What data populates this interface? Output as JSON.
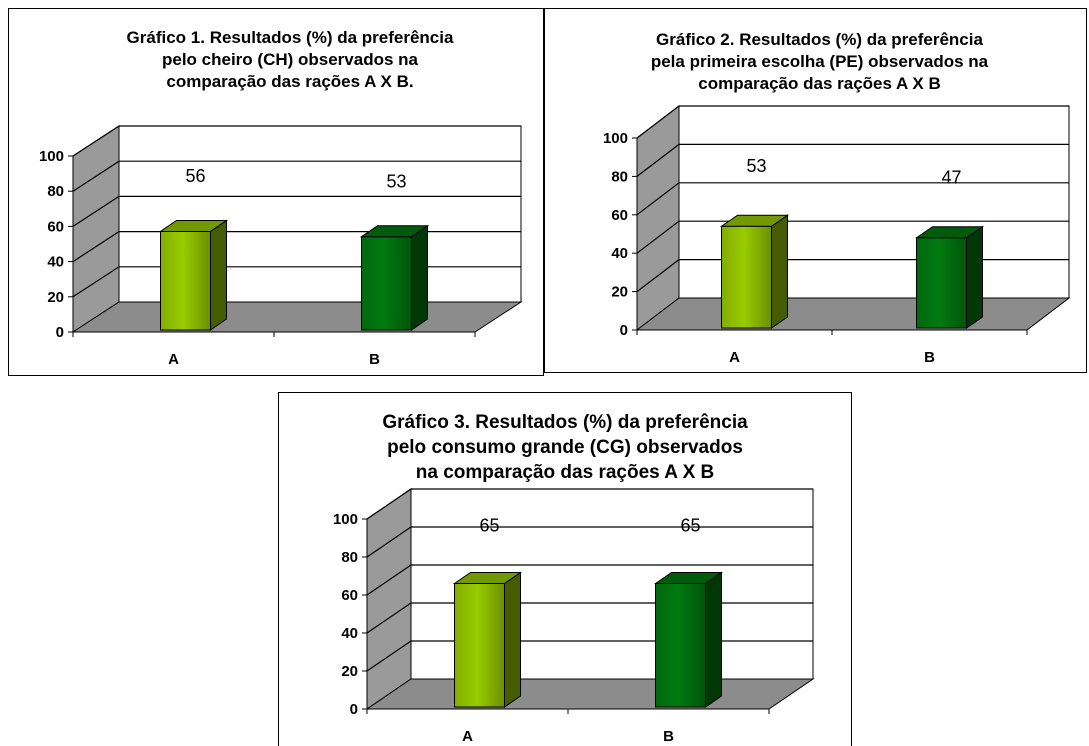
{
  "chart_data": [
    {
      "type": "bar",
      "title": "Gráfico 1. Resultados (%) da preferência\npelo cheiro (CH) observados na\ncomparação das rações A X B.",
      "categories": [
        "A",
        "B"
      ],
      "values": [
        56,
        53
      ],
      "ylim": [
        0,
        100
      ],
      "yticks": [
        "0",
        "20",
        "40",
        "60",
        "80",
        "100"
      ],
      "xlabel": "",
      "ylabel": "",
      "grid": true,
      "colors": [
        "#99cc00",
        "#007a10"
      ]
    },
    {
      "type": "bar",
      "title": "Gráfico 2. Resultados (%) da preferência\npela primeira escolha (PE) observados na\ncomparação das rações A X B",
      "categories": [
        "A",
        "B"
      ],
      "values": [
        53,
        47
      ],
      "ylim": [
        0,
        100
      ],
      "yticks": [
        "0",
        "20",
        "40",
        "60",
        "80",
        "100"
      ],
      "xlabel": "",
      "ylabel": "",
      "grid": true,
      "colors": [
        "#99cc00",
        "#007a10"
      ]
    },
    {
      "type": "bar",
      "title": "Gráfico 3. Resultados (%) da preferência\npelo consumo grande (CG) observados\nna comparação das rações A X B",
      "categories": [
        "A",
        "B"
      ],
      "values": [
        65,
        65
      ],
      "ylim": [
        0,
        100
      ],
      "yticks": [
        "0",
        "20",
        "40",
        "60",
        "80",
        "100"
      ],
      "xlabel": "",
      "ylabel": "",
      "grid": true,
      "colors": [
        "#99cc00",
        "#007a10"
      ]
    }
  ]
}
